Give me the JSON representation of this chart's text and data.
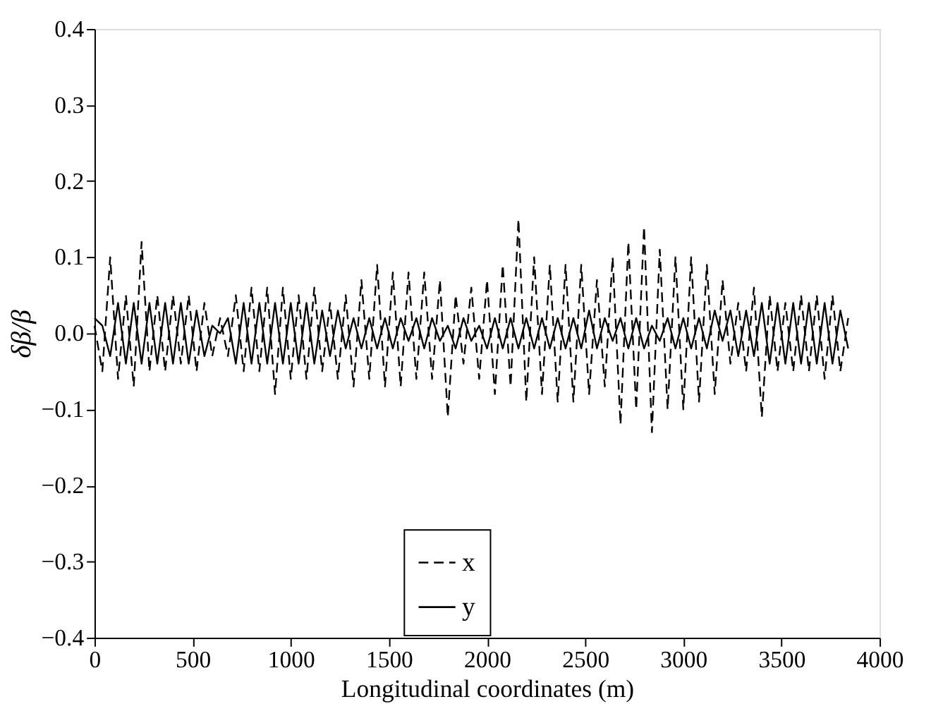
{
  "chart_data": {
    "type": "line",
    "xlabel": "Longitudinal coordinates (m)",
    "ylabel": "δβ/β",
    "x": [
      0,
      40,
      80,
      120,
      160,
      200,
      240,
      280,
      320,
      360,
      400,
      440,
      480,
      520,
      560,
      600,
      640,
      680,
      720,
      760,
      800,
      840,
      880,
      920,
      960,
      1000,
      1040,
      1080,
      1120,
      1160,
      1200,
      1240,
      1280,
      1320,
      1360,
      1400,
      1440,
      1480,
      1520,
      1560,
      1600,
      1640,
      1680,
      1720,
      1760,
      1800,
      1840,
      1880,
      1920,
      1960,
      2000,
      2040,
      2080,
      2120,
      2160,
      2200,
      2240,
      2280,
      2320,
      2360,
      2400,
      2440,
      2480,
      2520,
      2560,
      2600,
      2640,
      2680,
      2720,
      2760,
      2800,
      2840,
      2880,
      2920,
      2960,
      3000,
      3040,
      3080,
      3120,
      3160,
      3200,
      3240,
      3280,
      3320,
      3360,
      3400,
      3440,
      3480,
      3520,
      3560,
      3600,
      3640,
      3680,
      3720,
      3760,
      3800,
      3840
    ],
    "series": [
      {
        "name": "x",
        "color": "#000000",
        "line_style": "dashed",
        "values": [
          0.01,
          -0.05,
          0.1,
          -0.06,
          0.05,
          -0.07,
          0.12,
          -0.05,
          0.05,
          -0.05,
          0.05,
          -0.04,
          0.05,
          -0.05,
          0.04,
          -0.03,
          0.02,
          -0.03,
          0.05,
          -0.05,
          0.06,
          -0.05,
          0.06,
          -0.08,
          0.06,
          -0.06,
          0.05,
          -0.06,
          0.06,
          -0.05,
          0.04,
          -0.06,
          0.05,
          -0.07,
          0.07,
          -0.06,
          0.09,
          -0.07,
          0.08,
          -0.07,
          0.08,
          -0.06,
          0.08,
          -0.06,
          0.07,
          -0.11,
          0.05,
          -0.04,
          0.06,
          -0.06,
          0.07,
          -0.08,
          0.09,
          -0.07,
          0.15,
          -0.09,
          0.1,
          -0.08,
          0.09,
          -0.09,
          0.09,
          -0.09,
          0.09,
          -0.08,
          0.07,
          -0.07,
          0.1,
          -0.12,
          0.12,
          -0.1,
          0.14,
          -0.13,
          0.11,
          -0.1,
          0.1,
          -0.1,
          0.1,
          -0.09,
          0.09,
          -0.08,
          0.07,
          -0.04,
          0.04,
          -0.05,
          0.06,
          -0.11,
          0.05,
          -0.05,
          0.04,
          -0.05,
          0.05,
          -0.05,
          0.05,
          -0.06,
          0.05,
          -0.05,
          0.02
        ]
      },
      {
        "name": "y",
        "color": "#000000",
        "line_style": "solid",
        "values": [
          0.02,
          0.01,
          -0.03,
          0.04,
          -0.04,
          0.04,
          -0.04,
          0.04,
          -0.04,
          0.04,
          -0.04,
          0.04,
          -0.04,
          0.03,
          -0.03,
          0.01,
          0.0,
          0.02,
          -0.04,
          0.04,
          -0.04,
          0.04,
          -0.04,
          0.04,
          -0.04,
          0.04,
          -0.04,
          0.04,
          -0.04,
          0.03,
          -0.03,
          0.03,
          -0.02,
          0.02,
          -0.02,
          0.02,
          -0.02,
          0.02,
          -0.02,
          0.02,
          -0.01,
          0.02,
          -0.02,
          0.02,
          -0.01,
          0.01,
          -0.02,
          0.02,
          -0.01,
          0.01,
          -0.02,
          0.02,
          -0.02,
          0.02,
          -0.02,
          0.02,
          -0.02,
          0.02,
          -0.02,
          0.02,
          -0.02,
          0.02,
          -0.02,
          0.03,
          -0.02,
          0.02,
          -0.01,
          0.02,
          -0.02,
          0.02,
          -0.02,
          0.01,
          -0.01,
          0.02,
          -0.02,
          0.02,
          -0.02,
          0.02,
          -0.02,
          0.03,
          -0.01,
          0.03,
          -0.03,
          0.03,
          -0.03,
          0.04,
          -0.04,
          0.04,
          -0.04,
          0.04,
          -0.04,
          0.04,
          -0.04,
          0.04,
          -0.04,
          0.03,
          -0.02
        ]
      }
    ],
    "xlim": [
      0,
      4000
    ],
    "xticks": [
      0,
      500,
      1000,
      1500,
      2000,
      2500,
      3000,
      3500,
      4000
    ],
    "ylim": [
      -0.4,
      0.4
    ],
    "yticks": [
      {
        "value": -0.4,
        "label": "−0.4"
      },
      {
        "value": -0.3,
        "label": "−0.3"
      },
      {
        "value": -0.2,
        "label": "−0.2"
      },
      {
        "value": -0.1,
        "label": "−0.1"
      },
      {
        "value": 0,
        "label": "0.0"
      },
      {
        "value": 0.1,
        "label": "0.1"
      },
      {
        "value": 0.2,
        "label": "0.2"
      },
      {
        "value": 0.3,
        "label": "0.3"
      },
      {
        "value": 0.4,
        "label": "0.4"
      }
    ],
    "grid": false,
    "legend": "bottom",
    "marker": "none"
  }
}
